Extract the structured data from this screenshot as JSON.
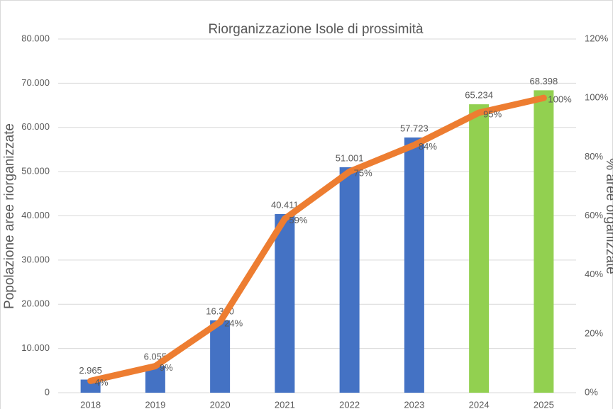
{
  "chart_data": {
    "type": "bar-line",
    "title": "Riorganizzazione Isole di prossimità",
    "y_label": "Popolazione aree riorganizzate",
    "y2_label": "% aree organizzate",
    "categories": [
      "2018",
      "2019",
      "2020",
      "2021",
      "2022",
      "2023",
      "2024",
      "2025"
    ],
    "series": [
      {
        "type": "bar",
        "colors": [
          "#4472c4",
          "#4472c4",
          "#4472c4",
          "#4472c4",
          "#4472c4",
          "#4472c4",
          "#92d050",
          "#92d050"
        ],
        "values": [
          2965,
          6055,
          16360,
          40411,
          51001,
          57723,
          65234,
          68398
        ],
        "value_labels": [
          "2.965",
          "6.055",
          "16.360",
          "40.411",
          "51.001",
          "57.723",
          "65.234",
          "68.398"
        ]
      },
      {
        "type": "line",
        "axis": "y2",
        "color": "#ed7d31",
        "values": [
          4,
          9,
          24,
          59,
          75,
          84,
          95,
          100
        ],
        "value_labels": [
          "4%",
          "9%",
          "24%",
          "59%",
          "75%",
          "84%",
          "95%",
          "100%"
        ]
      }
    ],
    "ylim": [
      0,
      80000
    ],
    "yticks": [
      0,
      {
        "value": 10000,
        "label": "10.000"
      },
      {
        "value": 20000,
        "label": "20.000"
      },
      {
        "value": 30000,
        "label": "30.000"
      },
      {
        "value": 40000,
        "label": "40.000"
      },
      {
        "value": 50000,
        "label": "50.000"
      },
      {
        "value": 60000,
        "label": "60.000"
      },
      {
        "value": 70000,
        "label": "70.000"
      },
      {
        "value": 80000,
        "label": "80.000"
      }
    ],
    "y2lim": [
      0,
      120
    ],
    "y2ticks": [
      {
        "value": 0,
        "label": "0%"
      },
      {
        "value": 20,
        "label": "20%"
      },
      {
        "value": 40,
        "label": "40%"
      },
      {
        "value": 60,
        "label": "60%"
      },
      {
        "value": 80,
        "label": "80%"
      },
      {
        "value": 100,
        "label": "100%"
      },
      {
        "value": 120,
        "label": "120%"
      }
    ],
    "grid": true
  }
}
